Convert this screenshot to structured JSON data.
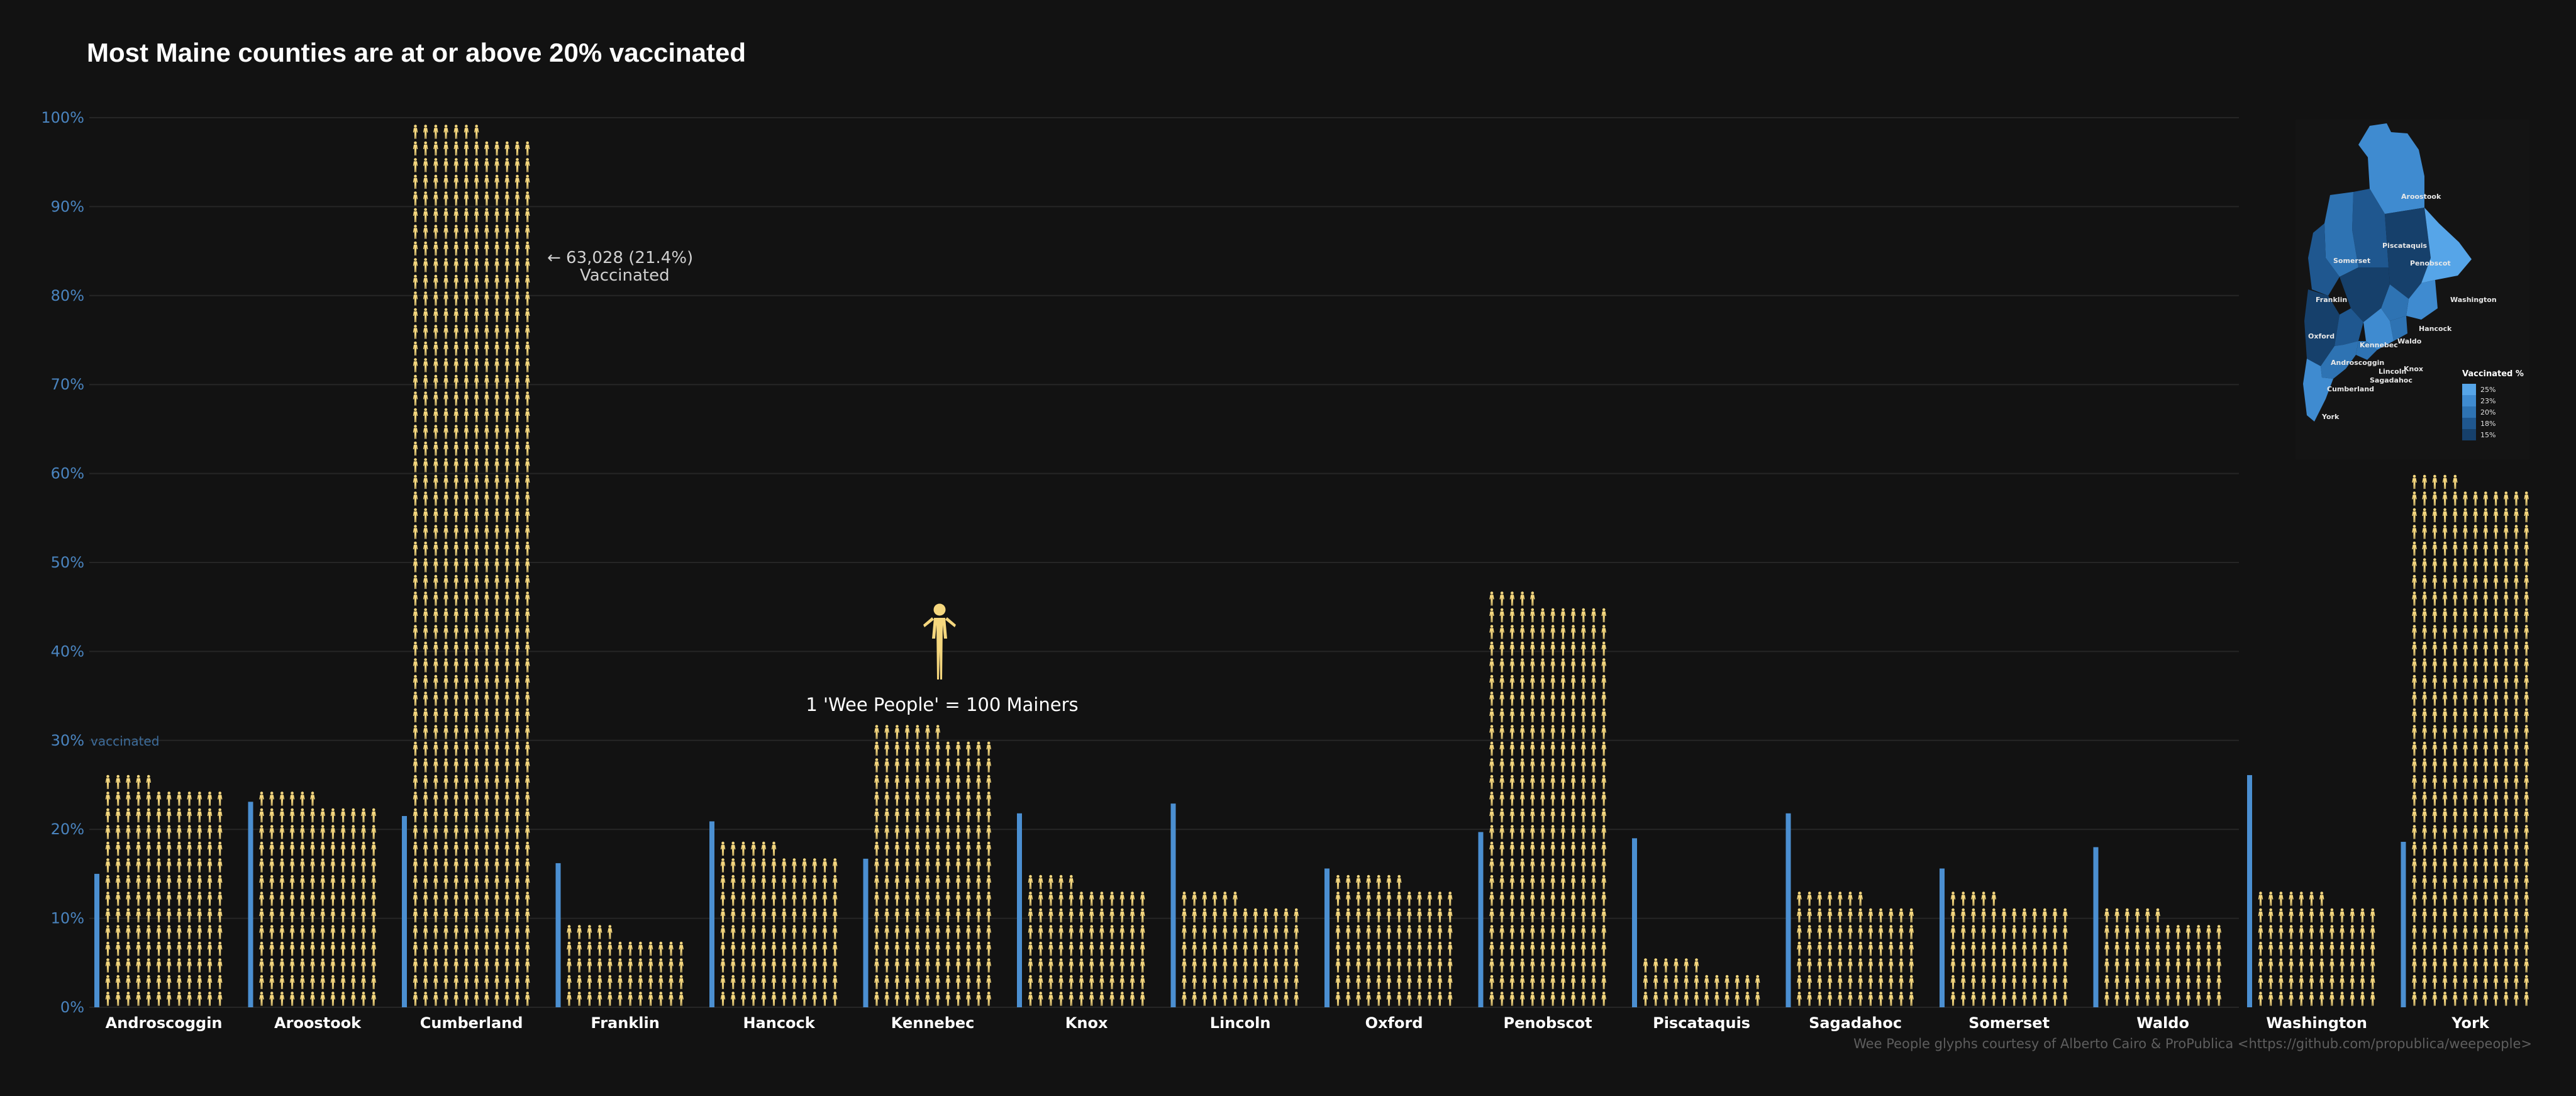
{
  "title": "Most Maine counties are at or above 20% vaccinated",
  "colors": {
    "background": "#121212",
    "grid": "#262626",
    "tick_text": "#4a84bf",
    "bar": "#4b8fd1",
    "glyph": "#f5d77e",
    "category_text": "#ffffff",
    "annotation_text": "#d0d0d0",
    "credit_text": "#5e5e5e",
    "map_scale": [
      "#0e2a46",
      "#16406b",
      "#1f578f",
      "#2e73b3",
      "#3f8bd0",
      "#56a5e8"
    ]
  },
  "vaccinated_label": "vaccinated",
  "annotation": {
    "text_line1": "← 63,028 (21.4%)",
    "text_line2": "Vaccinated"
  },
  "legend_note": "1 'Wee People' = 100 Mainers",
  "legend_icon": "person-icon",
  "credit": "Wee People glyphs courtesy of Alberto Cairo & ProPublica <https://github.com/propublica/weepeople>",
  "map_inset": {
    "legend_title": "Vaccinated %",
    "legend_items": [
      "25%",
      "23%",
      "20%",
      "18%",
      "15%"
    ],
    "county_labels": [
      "Aroostook",
      "Piscataquis",
      "Somerset",
      "Penobscot",
      "Washington",
      "Franklin",
      "Hancock",
      "Oxford",
      "Waldo",
      "Kennebec",
      "Androscoggin",
      "Lincoln",
      "Knox",
      "Sagadahoc",
      "Cumberland",
      "York"
    ]
  },
  "chart_data": {
    "type": "bar",
    "title": "Most Maine counties are at or above 20% vaccinated",
    "categories": [
      "Androscoggin",
      "Aroostook",
      "Cumberland",
      "Franklin",
      "Hancock",
      "Kennebec",
      "Knox",
      "Lincoln",
      "Oxford",
      "Penobscot",
      "Piscataquis",
      "Sagadahoc",
      "Somerset",
      "Waldo",
      "Washington",
      "York"
    ],
    "series": [
      {
        "name": "vaccinated",
        "values": [
          15.0,
          23.1,
          21.5,
          16.2,
          20.9,
          16.7,
          21.8,
          22.9,
          15.6,
          19.7,
          19.0,
          21.8,
          15.6,
          18.0,
          26.1,
          18.6
        ]
      },
      {
        "name": "1 'Wee People' = 100 Mainers",
        "values": [
          25.9,
          23.9,
          98.7,
          8.9,
          18.6,
          31.5,
          14.8,
          12.8,
          14.8,
          46.6,
          5.3,
          12.8,
          12.8,
          10.9,
          12.8,
          59.5
        ]
      }
    ],
    "ylim": [
      0,
      100
    ],
    "yticks": [
      0,
      10,
      20,
      30,
      40,
      50,
      60,
      70,
      80,
      90,
      100
    ],
    "ytick_labels": [
      "0%",
      "10%",
      "20%",
      "30%",
      "40%",
      "50%",
      "60%",
      "70%",
      "80%",
      "90%",
      "100%"
    ],
    "grid": true
  }
}
